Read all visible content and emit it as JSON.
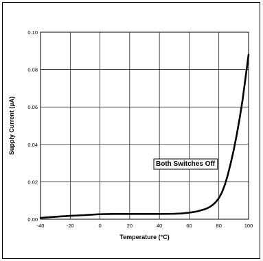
{
  "chart_data": {
    "type": "line",
    "title": "",
    "xlabel": "Temperature (°C)",
    "ylabel": "Supply Current (µA)",
    "xlim": [
      -40,
      100
    ],
    "ylim": [
      0,
      0.1
    ],
    "x_ticks": [
      -40,
      -20,
      0,
      20,
      40,
      60,
      80,
      100
    ],
    "x_tick_labels": [
      "-40",
      "-20",
      "0",
      "20",
      "40",
      "60",
      "80",
      "100"
    ],
    "y_ticks": [
      0,
      0.02,
      0.04,
      0.06,
      0.08,
      0.1
    ],
    "y_tick_labels": [
      "0.00",
      "0.02",
      "0.04",
      "0.06",
      "0.08",
      "0.10"
    ],
    "grid": true,
    "annotation": "Both Switches Off",
    "series": [
      {
        "color": "#000000",
        "x": [
          -40,
          -30,
          -20,
          -10,
          0,
          10,
          20,
          30,
          40,
          50,
          55,
          60,
          65,
          70,
          72,
          74,
          76,
          78,
          80,
          82,
          84,
          86,
          88,
          90,
          92,
          94,
          96,
          98,
          100
        ],
        "y": [
          0.0007,
          0.0013,
          0.0018,
          0.0022,
          0.0027,
          0.0028,
          0.0028,
          0.0028,
          0.0028,
          0.0029,
          0.0031,
          0.0035,
          0.0041,
          0.0052,
          0.0058,
          0.0066,
          0.0077,
          0.0092,
          0.0113,
          0.0142,
          0.0183,
          0.0236,
          0.03,
          0.037,
          0.045,
          0.054,
          0.064,
          0.076,
          0.088
        ]
      }
    ]
  }
}
